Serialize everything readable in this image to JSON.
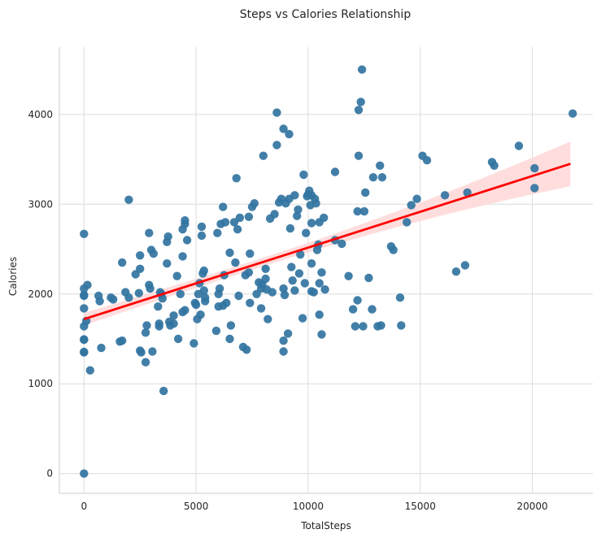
{
  "chart_data": {
    "type": "scatter",
    "title": "Steps vs Calories Relationship",
    "xlabel": "TotalSteps",
    "ylabel": "Calories",
    "xlim": [
      -1100,
      22700
    ],
    "ylim": [
      -220,
      4750
    ],
    "xticks": [
      0,
      5000,
      10000,
      15000,
      20000
    ],
    "yticks": [
      0,
      1000,
      2000,
      3000,
      4000
    ],
    "grid": true,
    "colors": {
      "points": "#3274a1",
      "regression_line": "#ff0000",
      "confidence_band": "#ffd7d7",
      "grid": "#dcdcdc"
    },
    "regression": {
      "x": [
        0,
        21700
      ],
      "y": [
        1720,
        3450
      ],
      "ci_lower": [
        1620,
        3200
      ],
      "ci_upper": [
        1810,
        3700
      ]
    },
    "points": [
      [
        0,
        0
      ],
      [
        0,
        1350
      ],
      [
        0,
        1355
      ],
      [
        0,
        1490
      ],
      [
        0,
        1495
      ],
      [
        0,
        1640
      ],
      [
        0,
        1840
      ],
      [
        0,
        1980
      ],
      [
        0,
        1990
      ],
      [
        0,
        2060
      ],
      [
        0,
        2670
      ],
      [
        100,
        1700
      ],
      [
        150,
        2100
      ],
      [
        270,
        1150
      ],
      [
        650,
        1980
      ],
      [
        700,
        1920
      ],
      [
        770,
        1400
      ],
      [
        1200,
        1960
      ],
      [
        1300,
        1940
      ],
      [
        1600,
        1470
      ],
      [
        1700,
        1480
      ],
      [
        1700,
        2350
      ],
      [
        1850,
        2020
      ],
      [
        2000,
        3050
      ],
      [
        2000,
        1960
      ],
      [
        2300,
        2220
      ],
      [
        2450,
        2010
      ],
      [
        2500,
        2430
      ],
      [
        2500,
        2280
      ],
      [
        2500,
        1370
      ],
      [
        2550,
        1350
      ],
      [
        2750,
        1240
      ],
      [
        2750,
        1570
      ],
      [
        2800,
        1650
      ],
      [
        2900,
        2100
      ],
      [
        2900,
        2680
      ],
      [
        2950,
        2060
      ],
      [
        3000,
        2490
      ],
      [
        3050,
        1360
      ],
      [
        3100,
        2450
      ],
      [
        3300,
        1860
      ],
      [
        3350,
        1670
      ],
      [
        3350,
        1640
      ],
      [
        3400,
        2020
      ],
      [
        3450,
        2000
      ],
      [
        3500,
        1950
      ],
      [
        3550,
        920
      ],
      [
        3700,
        2340
      ],
      [
        3700,
        2580
      ],
      [
        3750,
        2640
      ],
      [
        3800,
        1690
      ],
      [
        3850,
        1650
      ],
      [
        4000,
        1670
      ],
      [
        4000,
        1760
      ],
      [
        4150,
        2200
      ],
      [
        4200,
        1500
      ],
      [
        4300,
        2000
      ],
      [
        4400,
        1800
      ],
      [
        4400,
        2420
      ],
      [
        4400,
        2720
      ],
      [
        4500,
        2780
      ],
      [
        4500,
        2820
      ],
      [
        4500,
        1820
      ],
      [
        4600,
        2600
      ],
      [
        4900,
        1450
      ],
      [
        4950,
        1900
      ],
      [
        5000,
        1880
      ],
      [
        5050,
        1720
      ],
      [
        5100,
        2000
      ],
      [
        5150,
        2120
      ],
      [
        5200,
        1770
      ],
      [
        5250,
        2750
      ],
      [
        5250,
        2650
      ],
      [
        5300,
        2230
      ],
      [
        5350,
        2040
      ],
      [
        5350,
        2260
      ],
      [
        5400,
        1960
      ],
      [
        5400,
        1920
      ],
      [
        5900,
        1590
      ],
      [
        5950,
        2680
      ],
      [
        6000,
        1860
      ],
      [
        6050,
        2060
      ],
      [
        6000,
        2000
      ],
      [
        6100,
        2780
      ],
      [
        6200,
        2970
      ],
      [
        6200,
        1870
      ],
      [
        6250,
        2210
      ],
      [
        6300,
        2800
      ],
      [
        6350,
        1900
      ],
      [
        6500,
        1500
      ],
      [
        6500,
        2460
      ],
      [
        6550,
        1650
      ],
      [
        6700,
        2800
      ],
      [
        6750,
        2350
      ],
      [
        6800,
        3290
      ],
      [
        6850,
        2720
      ],
      [
        6900,
        1980
      ],
      [
        6950,
        2850
      ],
      [
        7100,
        1410
      ],
      [
        7200,
        2210
      ],
      [
        7250,
        1380
      ],
      [
        7350,
        2860
      ],
      [
        7350,
        2240
      ],
      [
        7400,
        1900
      ],
      [
        7400,
        2450
      ],
      [
        7500,
        2970
      ],
      [
        7600,
        3010
      ],
      [
        7700,
        2000
      ],
      [
        7800,
        2130
      ],
      [
        7900,
        2060
      ],
      [
        7900,
        1840
      ],
      [
        7950,
        2110
      ],
      [
        8000,
        3540
      ],
      [
        8100,
        2170
      ],
      [
        8100,
        2280
      ],
      [
        8150,
        2050
      ],
      [
        8200,
        1720
      ],
      [
        8300,
        2840
      ],
      [
        8400,
        2020
      ],
      [
        8500,
        2890
      ],
      [
        8600,
        3660
      ],
      [
        8600,
        4020
      ],
      [
        8700,
        3020
      ],
      [
        8800,
        3060
      ],
      [
        8900,
        3840
      ],
      [
        8900,
        2060
      ],
      [
        8900,
        1360
      ],
      [
        8900,
        1480
      ],
      [
        8950,
        1990
      ],
      [
        9000,
        3010
      ],
      [
        9100,
        1560
      ],
      [
        9150,
        3780
      ],
      [
        9150,
        3060
      ],
      [
        9200,
        2730
      ],
      [
        9250,
        2300
      ],
      [
        9300,
        2150
      ],
      [
        9400,
        2040
      ],
      [
        9400,
        3100
      ],
      [
        9500,
        2870
      ],
      [
        9550,
        2940
      ],
      [
        9600,
        2230
      ],
      [
        9650,
        2440
      ],
      [
        9750,
        1730
      ],
      [
        9800,
        3330
      ],
      [
        9850,
        2120
      ],
      [
        9900,
        2680
      ],
      [
        9950,
        3090
      ],
      [
        10000,
        3110
      ],
      [
        10050,
        3150
      ],
      [
        10100,
        2990
      ],
      [
        10150,
        2340
      ],
      [
        10150,
        2790
      ],
      [
        10150,
        3100
      ],
      [
        10150,
        2030
      ],
      [
        10250,
        2020
      ],
      [
        10300,
        3060
      ],
      [
        10350,
        3010
      ],
      [
        10400,
        2490
      ],
      [
        10450,
        2550
      ],
      [
        10500,
        1770
      ],
      [
        10500,
        2120
      ],
      [
        10500,
        2800
      ],
      [
        10600,
        2240
      ],
      [
        10600,
        1550
      ],
      [
        10700,
        2850
      ],
      [
        10750,
        2050
      ],
      [
        11200,
        3360
      ],
      [
        11200,
        2600
      ],
      [
        11500,
        2560
      ],
      [
        11800,
        2200
      ],
      [
        12000,
        1830
      ],
      [
        12100,
        1640
      ],
      [
        12200,
        2920
      ],
      [
        12200,
        1930
      ],
      [
        12250,
        3540
      ],
      [
        12250,
        4050
      ],
      [
        12350,
        4140
      ],
      [
        12400,
        4500
      ],
      [
        12450,
        1640
      ],
      [
        12500,
        2920
      ],
      [
        12550,
        3130
      ],
      [
        12700,
        2180
      ],
      [
        12850,
        1830
      ],
      [
        12900,
        3300
      ],
      [
        13100,
        1640
      ],
      [
        13200,
        3430
      ],
      [
        13250,
        1650
      ],
      [
        13300,
        3300
      ],
      [
        13700,
        2530
      ],
      [
        13800,
        2490
      ],
      [
        14100,
        1960
      ],
      [
        14150,
        1650
      ],
      [
        14400,
        2800
      ],
      [
        14600,
        2990
      ],
      [
        14850,
        3060
      ],
      [
        15100,
        3540
      ],
      [
        15300,
        3490
      ],
      [
        16100,
        3100
      ],
      [
        16600,
        2250
      ],
      [
        17000,
        2320
      ],
      [
        17100,
        3130
      ],
      [
        18200,
        3470
      ],
      [
        18300,
        3430
      ],
      [
        19400,
        3650
      ],
      [
        20100,
        3180
      ],
      [
        20100,
        3400
      ],
      [
        21800,
        4010
      ]
    ]
  }
}
